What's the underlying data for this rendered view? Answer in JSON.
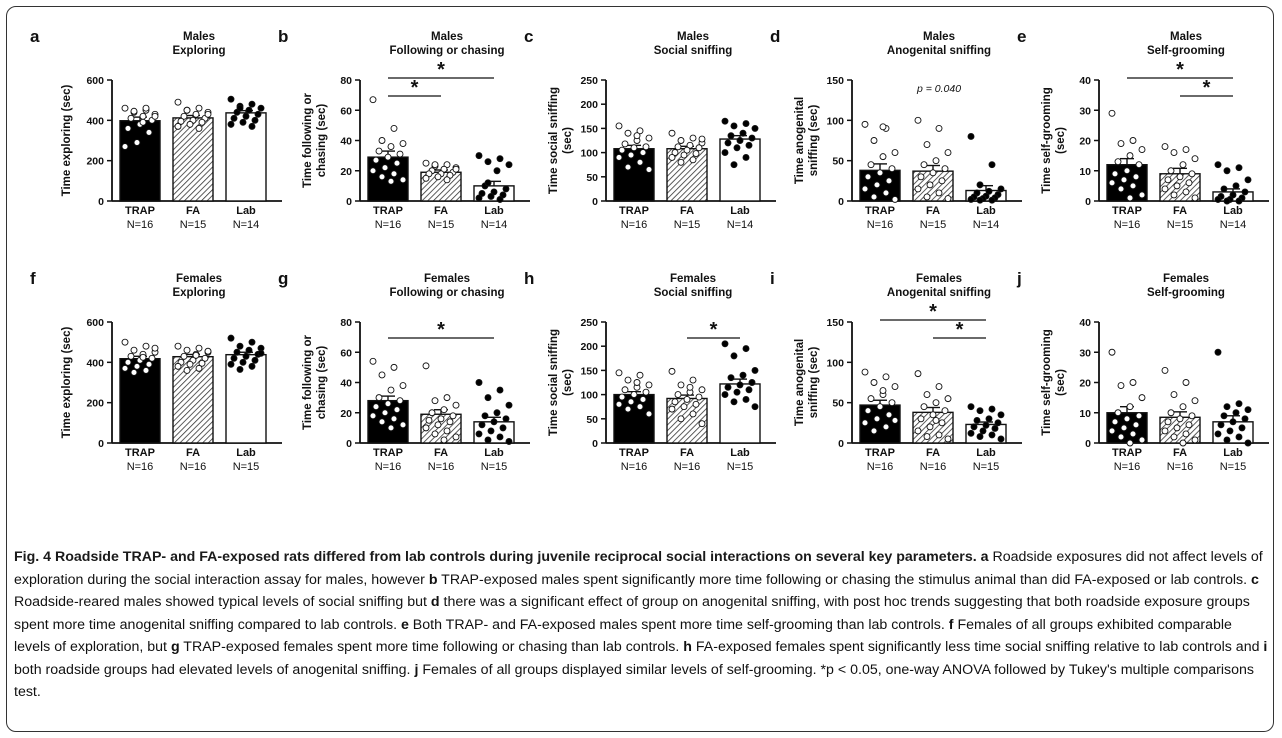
{
  "figure": {
    "panels": [
      {
        "letter": "a",
        "sex": "Males",
        "measure": "Exploring",
        "ylabel": [
          "Time exploring (sec)"
        ],
        "yticks": [
          0,
          200,
          400,
          600
        ],
        "ylim": [
          0,
          600
        ],
        "groups": [
          {
            "name": "TRAP",
            "n": "N=16",
            "mean": 398,
            "sem": 18,
            "points": [
              460,
              450,
              440,
              430,
              420,
              410,
              400,
              380,
              360,
              340,
              290,
              270,
              460,
              445,
              420,
              390
            ]
          },
          {
            "name": "FA",
            "n": "N=15",
            "mean": 412,
            "sem": 12,
            "points": [
              490,
              460,
              450,
              440,
              430,
              420,
              410,
              400,
              395,
              390,
              380,
              370,
              360,
              450,
              430
            ]
          },
          {
            "name": "Lab",
            "n": "N=14",
            "mean": 437,
            "sem": 11,
            "points": [
              505,
              480,
              470,
              460,
              450,
              440,
              430,
              420,
              410,
              400,
              390,
              380,
              370,
              460
            ]
          }
        ],
        "sig": [],
        "annotation": ""
      },
      {
        "letter": "b",
        "sex": "Males",
        "measure": "Following or chasing",
        "ylabel": [
          "Time following or",
          "chasing (sec)"
        ],
        "yticks": [
          0,
          20,
          40,
          60,
          80
        ],
        "ylim": [
          0,
          80
        ],
        "groups": [
          {
            "name": "TRAP",
            "n": "N=16",
            "mean": 29,
            "sem": 4,
            "points": [
              67,
              48,
              40,
              38,
              36,
              33,
              31,
              29,
              27,
              25,
              22,
              20,
              18,
              16,
              14,
              13
            ]
          },
          {
            "name": "FA",
            "n": "N=15",
            "mean": 19,
            "sem": 1.5,
            "points": [
              25,
              24,
              23,
              22,
              21,
              20,
              19,
              18,
              18,
              17,
              16,
              15,
              14,
              24,
              21
            ]
          },
          {
            "name": "Lab",
            "n": "N=14",
            "mean": 10,
            "sem": 3,
            "points": [
              30,
              28,
              26,
              24,
              20,
              10,
              8,
              6,
              5,
              4,
              3,
              2,
              1,
              12
            ]
          }
        ],
        "sig": [
          {
            "from": 0,
            "to": 1,
            "level": 0
          },
          {
            "from": 0,
            "to": 2,
            "level": 1
          }
        ],
        "annotation": ""
      },
      {
        "letter": "c",
        "sex": "Males",
        "measure": "Social sniffing",
        "ylabel": [
          "Time social sniffing",
          "(sec)"
        ],
        "yticks": [
          0,
          50,
          100,
          150,
          200,
          250
        ],
        "ylim": [
          0,
          250
        ],
        "groups": [
          {
            "name": "TRAP",
            "n": "N=16",
            "mean": 108,
            "sem": 7,
            "points": [
              155,
              145,
              140,
              130,
              125,
              118,
              112,
              110,
              105,
              100,
              95,
              90,
              80,
              70,
              65,
              135
            ]
          },
          {
            "name": "FA",
            "n": "N=15",
            "mean": 108,
            "sem": 5,
            "points": [
              140,
              130,
              125,
              120,
              115,
              112,
              110,
              105,
              100,
              98,
              95,
              90,
              85,
              80,
              128
            ]
          },
          {
            "name": "Lab",
            "n": "N=14",
            "mean": 128,
            "sem": 7,
            "points": [
              165,
              160,
              155,
              150,
              140,
              135,
              130,
              125,
              120,
              115,
              110,
              100,
              90,
              75
            ]
          }
        ],
        "sig": [],
        "annotation": ""
      },
      {
        "letter": "d",
        "sex": "Males",
        "measure": "Anogenital sniffing",
        "ylabel": [
          "Time anogenital",
          "sniffing (sec)"
        ],
        "yticks": [
          0,
          50,
          100,
          150
        ],
        "ylim": [
          0,
          150
        ],
        "groups": [
          {
            "name": "TRAP",
            "n": "N=16",
            "mean": 38,
            "sem": 8,
            "points": [
              95,
              90,
              75,
              60,
              55,
              45,
              40,
              35,
              30,
              25,
              20,
              15,
              10,
              5,
              2,
              92
            ]
          },
          {
            "name": "FA",
            "n": "N=15",
            "mean": 37,
            "sem": 7,
            "points": [
              100,
              90,
              70,
              60,
              50,
              45,
              40,
              35,
              30,
              25,
              20,
              15,
              10,
              5,
              3
            ]
          },
          {
            "name": "Lab",
            "n": "N=14",
            "mean": 13,
            "sem": 6,
            "points": [
              80,
              45,
              20,
              15,
              12,
              10,
              8,
              6,
              5,
              4,
              3,
              2,
              1,
              1
            ]
          }
        ],
        "sig": [],
        "annotation": "p = 0.040"
      },
      {
        "letter": "e",
        "sex": "Males",
        "measure": "Self-grooming",
        "ylabel": [
          "Time self-grooming",
          "(sec)"
        ],
        "yticks": [
          0,
          10,
          20,
          30,
          40
        ],
        "ylim": [
          0,
          40
        ],
        "groups": [
          {
            "name": "TRAP",
            "n": "N=16",
            "mean": 12,
            "sem": 2,
            "points": [
              29,
              20,
              19,
              17,
              15,
              13,
              12,
              10,
              9,
              8,
              7,
              6,
              5,
              4,
              2,
              1
            ]
          },
          {
            "name": "FA",
            "n": "N=15",
            "mean": 9,
            "sem": 1.8,
            "points": [
              18,
              17,
              16,
              14,
              12,
              10,
              9,
              8,
              7,
              6,
              5,
              4,
              3,
              2,
              1
            ]
          },
          {
            "name": "Lab",
            "n": "N=14",
            "mean": 3,
            "sem": 1,
            "points": [
              12,
              11,
              10,
              7,
              5,
              4,
              3,
              2,
              1.5,
              1,
              0.5,
              0.5,
              0,
              0
            ]
          }
        ],
        "sig": [
          {
            "from": 1,
            "to": 2,
            "level": 0
          },
          {
            "from": 0,
            "to": 2,
            "level": 1
          }
        ],
        "annotation": ""
      },
      {
        "letter": "f",
        "sex": "Females",
        "measure": "Exploring",
        "ylabel": [
          "Time exploring (sec)"
        ],
        "yticks": [
          0,
          200,
          400,
          600
        ],
        "ylim": [
          0,
          600
        ],
        "groups": [
          {
            "name": "TRAP",
            "n": "N=16",
            "mean": 418,
            "sem": 12,
            "points": [
              500,
              480,
              460,
              450,
              440,
              430,
              420,
              410,
              400,
              390,
              380,
              370,
              360,
              350,
              470,
              425
            ]
          },
          {
            "name": "FA",
            "n": "N=16",
            "mean": 428,
            "sem": 11,
            "points": [
              480,
              470,
              460,
              450,
              440,
              430,
              420,
              410,
              400,
              395,
              390,
              380,
              370,
              360,
              455,
              435
            ]
          },
          {
            "name": "Lab",
            "n": "N=15",
            "mean": 438,
            "sem": 12,
            "points": [
              520,
              500,
              480,
              470,
              460,
              450,
              440,
              430,
              420,
              410,
              400,
              390,
              380,
              365,
              445
            ]
          }
        ],
        "sig": [],
        "annotation": ""
      },
      {
        "letter": "g",
        "sex": "Females",
        "measure": "Following or chasing",
        "ylabel": [
          "Time following or",
          "chasing (sec)"
        ],
        "yticks": [
          0,
          20,
          40,
          60,
          80
        ],
        "ylim": [
          0,
          80
        ],
        "groups": [
          {
            "name": "TRAP",
            "n": "N=16",
            "mean": 28,
            "sem": 3,
            "points": [
              54,
              50,
              45,
              38,
              35,
              30,
              28,
              26,
              24,
              22,
              20,
              18,
              16,
              14,
              12,
              10
            ]
          },
          {
            "name": "FA",
            "n": "N=16",
            "mean": 19,
            "sem": 3,
            "points": [
              51,
              30,
              28,
              25,
              22,
              20,
              18,
              16,
              15,
              14,
              12,
              10,
              8,
              6,
              4,
              2
            ]
          },
          {
            "name": "Lab",
            "n": "N=15",
            "mean": 14,
            "sem": 3,
            "points": [
              40,
              35,
              30,
              25,
              20,
              18,
              16,
              14,
              12,
              10,
              8,
              6,
              4,
              2,
              1
            ]
          }
        ],
        "sig": [
          {
            "from": 0,
            "to": 2,
            "level": 0
          }
        ],
        "annotation": ""
      },
      {
        "letter": "h",
        "sex": "Females",
        "measure": "Social sniffing",
        "ylabel": [
          "Time social sniffing",
          "(sec)"
        ],
        "yticks": [
          0,
          50,
          100,
          150,
          200,
          250
        ],
        "ylim": [
          0,
          250
        ],
        "groups": [
          {
            "name": "TRAP",
            "n": "N=16",
            "mean": 100,
            "sem": 6,
            "points": [
              145,
              140,
              130,
              120,
              115,
              110,
              105,
              100,
              95,
              90,
              85,
              80,
              75,
              70,
              60,
              125
            ]
          },
          {
            "name": "FA",
            "n": "N=16",
            "mean": 92,
            "sem": 7,
            "points": [
              148,
              130,
              120,
              110,
              105,
              100,
              95,
              90,
              85,
              80,
              75,
              70,
              60,
              50,
              40,
              115
            ]
          },
          {
            "name": "Lab",
            "n": "N=15",
            "mean": 122,
            "sem": 10,
            "points": [
              205,
              195,
              180,
              150,
              140,
              135,
              125,
              120,
              115,
              110,
              105,
              100,
              90,
              85,
              75
            ]
          }
        ],
        "sig": [
          {
            "from": 1,
            "to": 2,
            "level": 0
          }
        ],
        "annotation": ""
      },
      {
        "letter": "i",
        "sex": "Females",
        "measure": "Anogenital sniffing",
        "ylabel": [
          "Time anogenital",
          "sniffing (sec)"
        ],
        "yticks": [
          0,
          50,
          100,
          150
        ],
        "ylim": [
          0,
          150
        ],
        "groups": [
          {
            "name": "TRAP",
            "n": "N=16",
            "mean": 47,
            "sem": 6,
            "points": [
              88,
              82,
              75,
              70,
              60,
              55,
              50,
              45,
              40,
              35,
              30,
              25,
              20,
              15,
              28,
              65
            ]
          },
          {
            "name": "FA",
            "n": "N=16",
            "mean": 38,
            "sem": 6,
            "points": [
              86,
              70,
              60,
              55,
              50,
              45,
              40,
              35,
              30,
              25,
              20,
              15,
              10,
              8,
              5,
              28
            ]
          },
          {
            "name": "Lab",
            "n": "N=15",
            "mean": 23,
            "sem": 3,
            "points": [
              45,
              42,
              40,
              35,
              30,
              28,
              25,
              22,
              20,
              18,
              15,
              12,
              10,
              8,
              5
            ]
          }
        ],
        "sig": [
          {
            "from": 1,
            "to": 2,
            "level": 0
          },
          {
            "from": 0,
            "to": 2,
            "level": 1
          }
        ],
        "annotation": ""
      },
      {
        "letter": "j",
        "sex": "Females",
        "measure": "Self-grooming",
        "ylabel": [
          "Time self-grooming",
          "(sec)"
        ],
        "yticks": [
          0,
          10,
          20,
          30,
          40
        ],
        "ylim": [
          0,
          40
        ],
        "groups": [
          {
            "name": "TRAP",
            "n": "N=16",
            "mean": 10,
            "sem": 2,
            "points": [
              30,
              20,
              19,
              15,
              12,
              10,
              9,
              8,
              7,
              6,
              5,
              4,
              3,
              2,
              1,
              0
            ]
          },
          {
            "name": "FA",
            "n": "N=16",
            "mean": 8.5,
            "sem": 1.8,
            "points": [
              24,
              20,
              16,
              14,
              12,
              10,
              9,
              8,
              7,
              6,
              5,
              4,
              3,
              2,
              1,
              0
            ]
          },
          {
            "name": "Lab",
            "n": "N=15",
            "mean": 7,
            "sem": 2,
            "points": [
              30,
              13,
              12,
              11,
              10,
              9,
              8,
              7,
              6,
              5,
              4,
              3,
              2,
              1,
              0
            ]
          }
        ],
        "sig": [],
        "annotation": ""
      }
    ]
  },
  "caption": {
    "title": "Fig. 4 Roadside TRAP- and FA-exposed rats differed from lab controls during juvenile reciprocal social interactions on several key parameters.",
    "parts": [
      {
        "b": "a",
        "t": " Roadside exposures did not affect levels of exploration during the social interaction assay for males, however "
      },
      {
        "b": "b",
        "t": " TRAP-exposed males spent significantly more time following or chasing the stimulus animal than did FA-exposed or lab controls. "
      },
      {
        "b": "c",
        "t": " Roadside-reared males showed typical levels of social sniffing but "
      },
      {
        "b": "d",
        "t": " there was a significant effect of group on anogenital sniffing, with post hoc trends suggesting that both roadside exposure groups spent more time anogenital sniffing compared to lab controls. "
      },
      {
        "b": "e",
        "t": " Both TRAP- and FA-exposed males spent more time self-grooming than lab controls. "
      },
      {
        "b": "f",
        "t": " Females of all groups exhibited comparable levels of exploration, but "
      },
      {
        "b": "g",
        "t": " TRAP-exposed females spent more time following or chasing than lab controls. "
      },
      {
        "b": "h",
        "t": " FA-exposed females spent significantly less time social sniffing relative to lab controls and "
      },
      {
        "b": "i",
        "t": " both roadside groups had elevated levels of anogenital sniffing. "
      },
      {
        "b": "j",
        "t": " Females of all groups displayed similar levels of self-grooming. *p < 0.05, one-way ANOVA followed by Tukey's multiple comparisons test."
      }
    ]
  }
}
